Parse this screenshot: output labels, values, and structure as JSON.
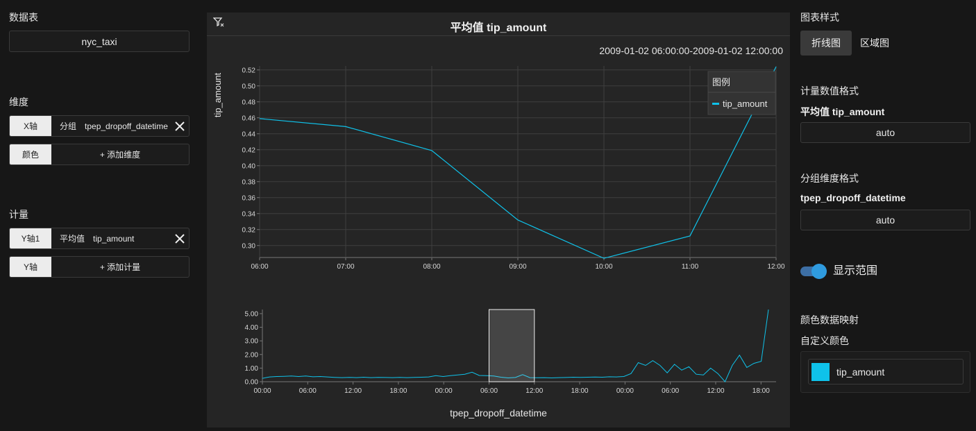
{
  "left": {
    "dataset_label": "数据表",
    "dataset_value": "nyc_taxi",
    "dimension_label": "维度",
    "x_axis": {
      "tag": "X轴",
      "kind": "分组",
      "field": "tpep_dropoff_datetime"
    },
    "color": {
      "tag": "颜色",
      "action": "+ 添加维度"
    },
    "measure_label": "计量",
    "y_axis1": {
      "tag": "Y轴1",
      "agg": "平均值",
      "field": "tip_amount"
    },
    "y_axis": {
      "tag": "Y轴",
      "action": "+ 添加计量"
    }
  },
  "chart": {
    "title": "平均值 tip_amount",
    "range": "2009-01-02 06:00:00-2009-01-02 12:00:00",
    "legend_title": "图例",
    "legend_item": "tip_amount",
    "series_color": "#0fc2ea"
  },
  "chart_data": [
    {
      "type": "line",
      "title": "平均值 tip_amount",
      "ylabel": "tip_amount",
      "x_ticks": [
        "06:00",
        "07:00",
        "08:00",
        "09:00",
        "10:00",
        "11:00",
        "12:00"
      ],
      "y_ticks": [
        "0.30",
        "0.32",
        "0.34",
        "0.36",
        "0.38",
        "0.40",
        "0.42",
        "0.44",
        "0.46",
        "0.48",
        "0.50",
        "0.52"
      ],
      "ylim": [
        0.285,
        0.525
      ],
      "series": [
        {
          "name": "tip_amount",
          "x": [
            "06:00",
            "07:00",
            "08:00",
            "09:00",
            "10:00",
            "11:00",
            "12:00"
          ],
          "values": [
            0.459,
            0.449,
            0.419,
            0.332,
            0.284,
            0.312,
            0.524
          ]
        }
      ],
      "legend_position": "top-right",
      "grid": true
    },
    {
      "type": "line",
      "xlabel": "tpep_dropoff_datetime",
      "x_ticks": [
        "00:00",
        "06:00",
        "12:00",
        "18:00",
        "00:00",
        "06:00",
        "12:00",
        "18:00",
        "00:00",
        "06:00",
        "12:00",
        "18:00"
      ],
      "y_ticks": [
        "0.00",
        "1.00",
        "2.00",
        "3.00",
        "4.00",
        "5.00"
      ],
      "ylim": [
        0,
        5.3
      ],
      "brush": [
        "06:00",
        "12:00"
      ],
      "series": [
        {
          "name": "tip_amount",
          "values": [
            0.25,
            0.35,
            0.38,
            0.4,
            0.42,
            0.38,
            0.42,
            0.36,
            0.38,
            0.35,
            0.32,
            0.3,
            0.32,
            0.3,
            0.33,
            0.3,
            0.32,
            0.31,
            0.3,
            0.32,
            0.3,
            0.32,
            0.33,
            0.35,
            0.45,
            0.38,
            0.45,
            0.5,
            0.55,
            0.7,
            0.46,
            0.45,
            0.42,
            0.33,
            0.28,
            0.31,
            0.52,
            0.3,
            0.29,
            0.3,
            0.28,
            0.3,
            0.31,
            0.33,
            0.32,
            0.33,
            0.34,
            0.33,
            0.36,
            0.35,
            0.38,
            0.6,
            1.4,
            1.2,
            1.55,
            1.2,
            0.65,
            1.28,
            0.85,
            1.1,
            0.55,
            0.5,
            1.0,
            0.6,
            0.0,
            1.2,
            1.95,
            1.05,
            1.35,
            1.5,
            5.3
          ]
        }
      ]
    }
  ],
  "right": {
    "style_label": "图表样式",
    "style_line": "折线图",
    "style_area": "区域图",
    "measure_format_label": "计量数值格式",
    "measure_field": "平均值 tip_amount",
    "measure_format": "auto",
    "dim_format_label": "分组维度格式",
    "dim_field": "tpep_dropoff_datetime",
    "dim_format": "auto",
    "show_range": "显示范围",
    "color_map_label": "颜色数据映射",
    "custom_color_label": "自定义颜色",
    "color_item": "tip_amount"
  }
}
